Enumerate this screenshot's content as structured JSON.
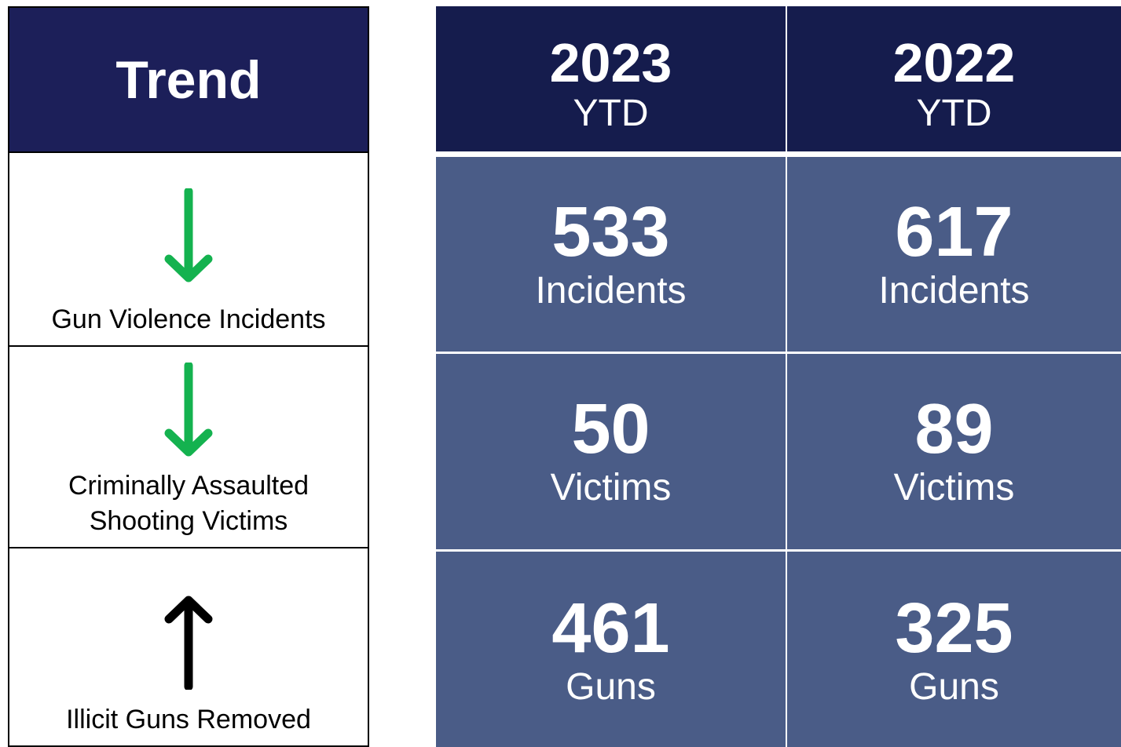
{
  "trend": {
    "header": "Trend",
    "rows": [
      {
        "direction": "down",
        "color": "#14b24f",
        "label_lines": [
          "Gun Violence Incidents"
        ]
      },
      {
        "direction": "down",
        "color": "#14b24f",
        "label_lines": [
          "Criminally Assaulted",
          "Shooting Victims"
        ]
      },
      {
        "direction": "up",
        "color": "#000000",
        "label_lines": [
          "Illicit Guns Removed"
        ]
      }
    ]
  },
  "table": {
    "columns": [
      {
        "year": "2023",
        "period": "YTD"
      },
      {
        "year": "2022",
        "period": "YTD"
      }
    ],
    "rows": [
      {
        "values": [
          533,
          617
        ],
        "unit": "Incidents"
      },
      {
        "values": [
          50,
          89
        ],
        "unit": "Victims"
      },
      {
        "values": [
          461,
          325
        ],
        "unit": "Guns"
      }
    ]
  }
}
